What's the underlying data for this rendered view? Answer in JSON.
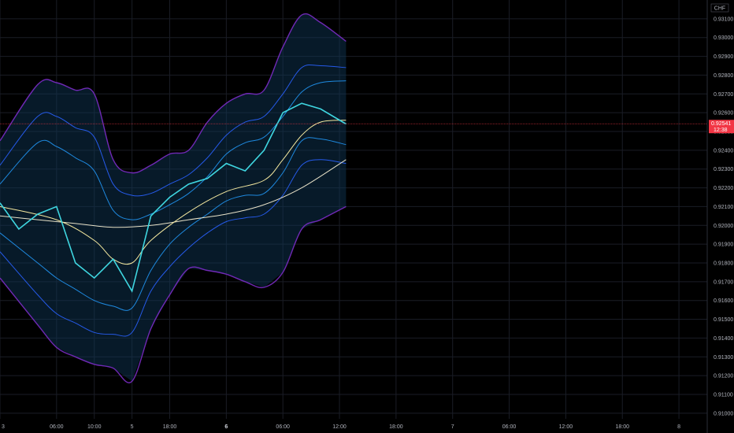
{
  "chart_data": {
    "type": "line",
    "currency_label": "CHF",
    "y_ticks": [
      "0.93100",
      "0.93000",
      "0.92900",
      "0.92800",
      "0.92700",
      "0.92600",
      "0.92500",
      "0.92400",
      "0.92300",
      "0.92200",
      "0.92100",
      "0.92000",
      "0.91900",
      "0.91800",
      "0.91700",
      "0.91600",
      "0.91500",
      "0.91400",
      "0.91300",
      "0.91200",
      "0.91100",
      "0.91000"
    ],
    "y_tick_values": [
      0.931,
      0.93,
      0.929,
      0.928,
      0.927,
      0.926,
      0.925,
      0.924,
      0.923,
      0.922,
      0.921,
      0.92,
      0.919,
      0.918,
      0.917,
      0.916,
      0.915,
      0.914,
      0.913,
      0.912,
      0.911,
      0.91
    ],
    "ylim": [
      0.9097,
      0.932
    ],
    "x_ticks": [
      {
        "label": "3",
        "x": 0,
        "bold": false
      },
      {
        "label": "06:00",
        "x": 6,
        "bold": false
      },
      {
        "label": "10:00",
        "x": 10,
        "bold": false
      },
      {
        "label": "5",
        "x": 14,
        "bold": false
      },
      {
        "label": "18:00",
        "x": 18,
        "bold": false
      },
      {
        "label": "6",
        "x": 24,
        "bold": true
      },
      {
        "label": "06:00",
        "x": 30,
        "bold": false
      },
      {
        "label": "12:00",
        "x": 36,
        "bold": false
      },
      {
        "label": "18:00",
        "x": 42,
        "bold": false
      },
      {
        "label": "7",
        "x": 48,
        "bold": false
      },
      {
        "label": "06:00",
        "x": 54,
        "bold": false
      },
      {
        "label": "12:00",
        "x": 60,
        "bold": false
      },
      {
        "label": "18:00",
        "x": 66,
        "bold": false
      },
      {
        "label": "8",
        "x": 72,
        "bold": false
      }
    ],
    "xlim": [
      0,
      75
    ],
    "current_price": {
      "label": "0.92541",
      "sublabel": "12:38",
      "value": 0.92541,
      "color": "#f23645"
    },
    "price_x": [
      0,
      2,
      4,
      6,
      8,
      10,
      12,
      14,
      16,
      18,
      20,
      22,
      24,
      26,
      28,
      30,
      32,
      34,
      36.7
    ],
    "price": [
      0.9212,
      0.9198,
      0.9206,
      0.921,
      0.918,
      0.9172,
      0.9182,
      0.9165,
      0.9205,
      0.9215,
      0.9222,
      0.9225,
      0.9233,
      0.9229,
      0.924,
      0.926,
      0.9265,
      0.9262,
      0.9254
    ],
    "ma_slow_x": [
      0,
      4,
      8,
      12,
      16,
      20,
      24,
      28,
      32,
      36.7
    ],
    "ma_slow": [
      0.9205,
      0.9203,
      0.9201,
      0.9199,
      0.92,
      0.9203,
      0.9206,
      0.9211,
      0.922,
      0.9235
    ],
    "ma_fast_x": [
      0,
      6,
      10,
      12,
      14,
      16,
      20,
      24,
      28,
      30,
      32,
      34,
      36.7
    ],
    "ma_fast": [
      0.921,
      0.9203,
      0.9192,
      0.9182,
      0.918,
      0.9192,
      0.9207,
      0.9218,
      0.9224,
      0.9235,
      0.9248,
      0.9255,
      0.9256
    ],
    "bands_x": [
      0,
      4,
      6,
      8,
      10,
      12,
      14,
      16,
      18,
      20,
      22,
      24,
      26,
      28,
      30,
      32,
      34,
      36.7
    ],
    "bands": [
      {
        "name": "u3",
        "color": "#7b2cc7",
        "values": [
          0.9245,
          0.9275,
          0.9276,
          0.9272,
          0.927,
          0.9235,
          0.9228,
          0.9232,
          0.9238,
          0.924,
          0.9255,
          0.9265,
          0.927,
          0.9272,
          0.9295,
          0.9312,
          0.9308,
          0.9298
        ]
      },
      {
        "name": "u2",
        "color": "#2962ff",
        "values": [
          0.9232,
          0.9258,
          0.9258,
          0.9252,
          0.9247,
          0.9222,
          0.9216,
          0.9217,
          0.9222,
          0.9227,
          0.9236,
          0.9248,
          0.9255,
          0.9258,
          0.927,
          0.9284,
          0.9285,
          0.9284
        ]
      },
      {
        "name": "u1",
        "color": "#2196f3",
        "values": [
          0.9222,
          0.9244,
          0.9242,
          0.9236,
          0.9229,
          0.9208,
          0.9203,
          0.9206,
          0.9211,
          0.9217,
          0.9226,
          0.9238,
          0.9244,
          0.9247,
          0.9258,
          0.9271,
          0.9276,
          0.9277
        ]
      },
      {
        "name": "l1",
        "color": "#2196f3",
        "values": [
          0.9196,
          0.918,
          0.9172,
          0.9166,
          0.916,
          0.9157,
          0.9156,
          0.9176,
          0.919,
          0.9199,
          0.9206,
          0.9213,
          0.9216,
          0.9217,
          0.9228,
          0.9245,
          0.9246,
          0.9243
        ]
      },
      {
        "name": "l2",
        "color": "#2962ff",
        "values": [
          0.9186,
          0.9163,
          0.9153,
          0.9148,
          0.9143,
          0.9142,
          0.9143,
          0.9165,
          0.9178,
          0.9188,
          0.9196,
          0.9202,
          0.9204,
          0.9206,
          0.9216,
          0.9232,
          0.9235,
          0.9233
        ]
      },
      {
        "name": "l3",
        "color": "#7b2cc7",
        "values": [
          0.9172,
          0.9147,
          0.9135,
          0.913,
          0.9126,
          0.9124,
          0.9117,
          0.9145,
          0.9163,
          0.9177,
          0.9176,
          0.9174,
          0.917,
          0.9167,
          0.9175,
          0.9198,
          0.9203,
          0.921
        ]
      }
    ],
    "grid": true,
    "legend": "none"
  }
}
